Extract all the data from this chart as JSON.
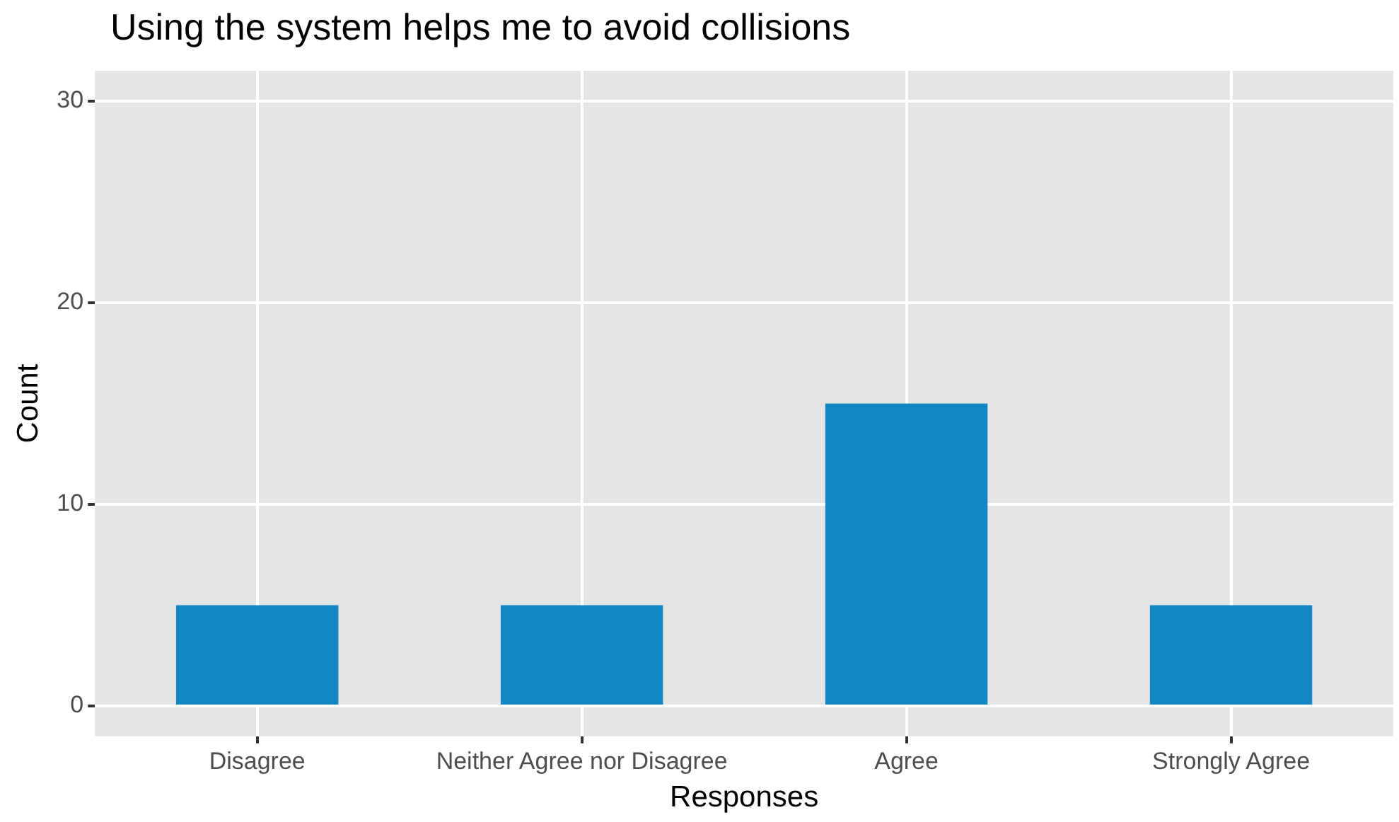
{
  "chart_data": {
    "type": "bar",
    "title": "Using the system helps me to avoid collisions",
    "xlabel": "Responses",
    "ylabel": "Count",
    "categories": [
      "Disagree",
      "Neither Agree nor Disagree",
      "Agree",
      "Strongly Agree"
    ],
    "values": [
      5,
      5,
      15,
      5
    ],
    "color": "#1287c4",
    "ylim": [
      -1.5,
      31.5
    ],
    "yticks": [
      0,
      10,
      20,
      30
    ],
    "grid": true
  }
}
